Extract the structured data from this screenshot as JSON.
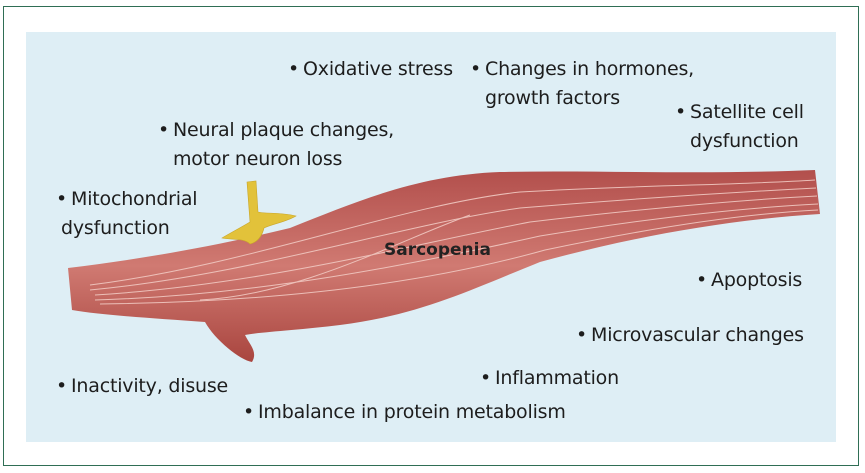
{
  "title": "Sarcopenia",
  "labels": {
    "oxidative_stress": "Oxidative stress",
    "hormones": [
      "Changes in hormones,",
      "growth factors"
    ],
    "satellite": [
      "Satellite cell",
      "dysfunction"
    ],
    "neural": [
      "Neural plaque changes,",
      "motor neuron loss"
    ],
    "mito": [
      "Mitochondrial",
      "dysfunction"
    ],
    "apoptosis": "Apoptosis",
    "microvascular": "Microvascular changes",
    "inflammation": "Inflammation",
    "inactivity": "Inactivity, disuse",
    "protein": "Imbalance in protein metabolism"
  },
  "colors": {
    "background": "#deeef5",
    "border": "#2f6e55",
    "muscle": "#c0605d",
    "nerve": "#e2c23a"
  }
}
